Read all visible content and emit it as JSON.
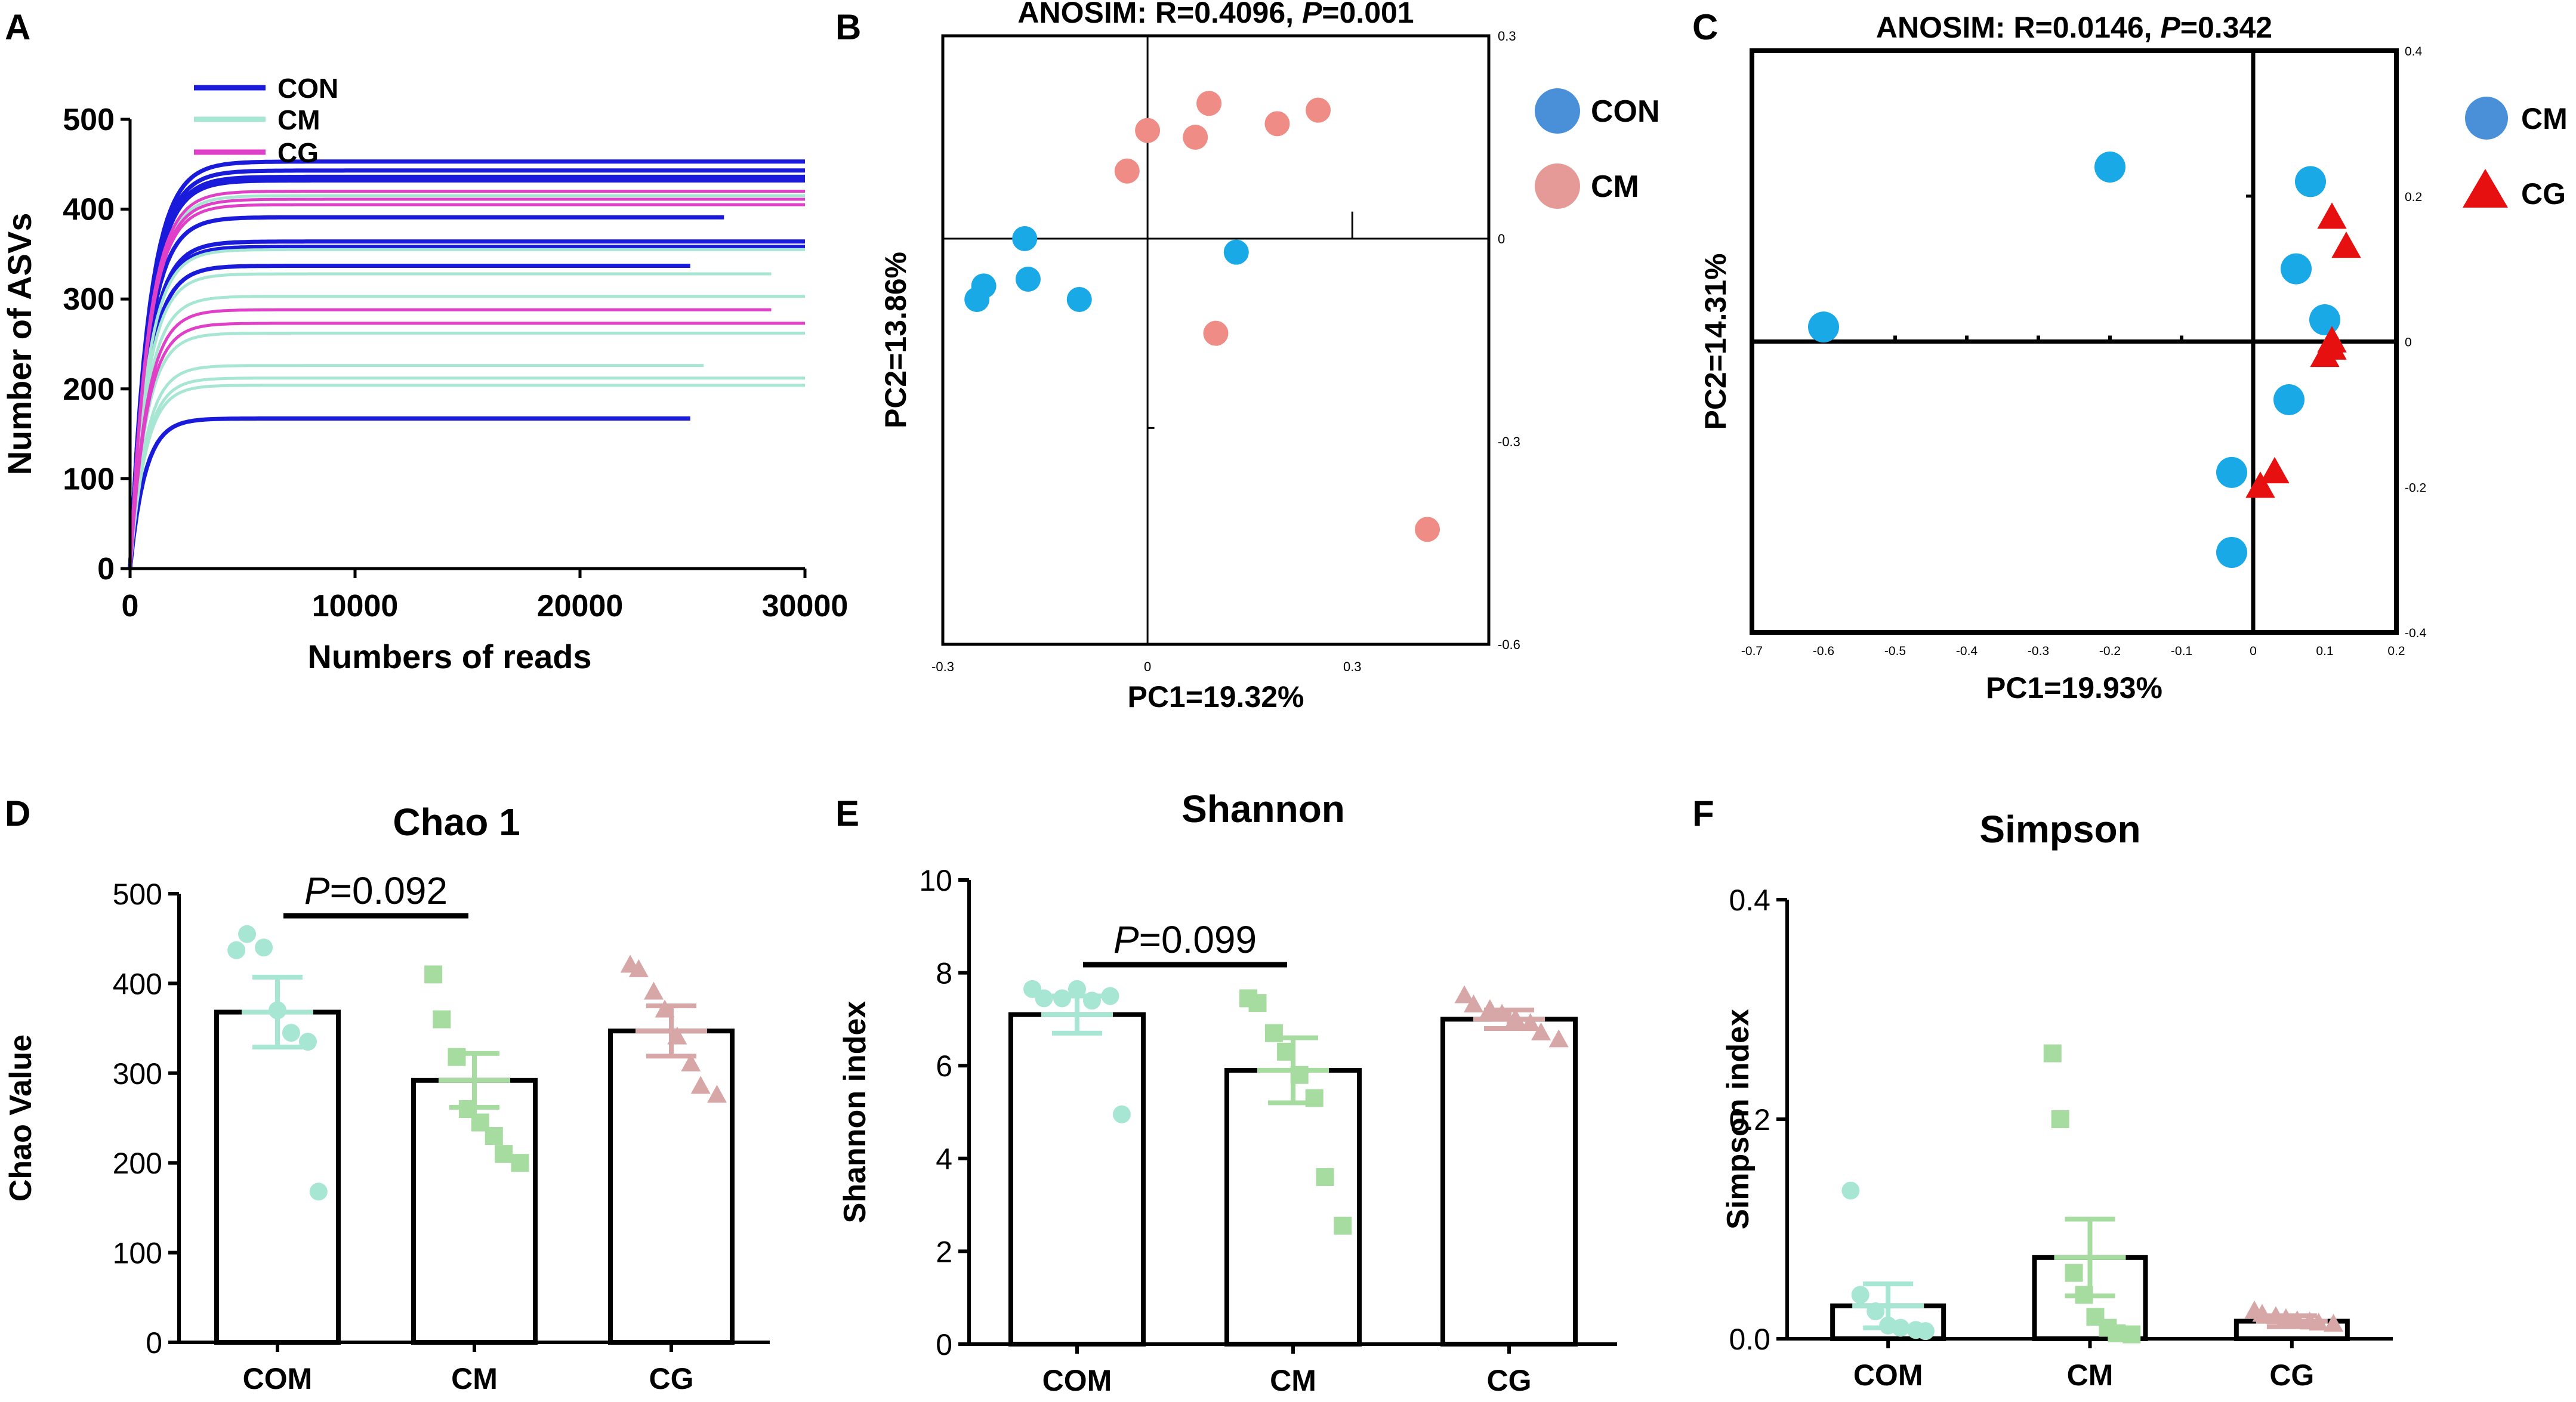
{
  "colors": {
    "con_blue": "#1a1adb",
    "cm_mint": "#a8e6d4",
    "cg_magenta": "#e040c8",
    "pcoa_blue": "#19a9e6",
    "pcoa_pink": "#f08c86",
    "legend_blue": "#4a90d9",
    "legend_pink": "#e69a98",
    "red": "#e61010",
    "point_mint": "#a8e6d4",
    "point_green": "#a7dca0",
    "point_rose": "#d7a7a7"
  },
  "chart_data": [
    {
      "type": "line",
      "panel": "A",
      "xlabel": "Numbers of reads",
      "ylabel": "Number of ASVs",
      "xlim": [
        0,
        30000
      ],
      "ylim": [
        0,
        500
      ],
      "xticks": [
        "0",
        "10000",
        "20000",
        "30000"
      ],
      "yticks": [
        "0",
        "100",
        "200",
        "300",
        "400",
        "500"
      ],
      "legend": [
        "CON",
        "CM",
        "CG"
      ],
      "series": [
        {
          "name": "CON",
          "asymptotes": [
            453,
            443,
            436,
            432,
            391,
            364,
            358,
            337,
            167
          ],
          "read_ends": [
            30000,
            30000,
            30000,
            30000,
            26500,
            30000,
            30000,
            25000,
            25000
          ]
        },
        {
          "name": "CM",
          "asymptotes": [
            415,
            355,
            328,
            303,
            262,
            226,
            212,
            204
          ],
          "read_ends": [
            30000,
            30000,
            28500,
            30000,
            30000,
            25500,
            30000,
            30000
          ]
        },
        {
          "name": "CG",
          "asymptotes": [
            420,
            411,
            405,
            288,
            273
          ],
          "read_ends": [
            30000,
            30000,
            30000,
            28500,
            30000
          ]
        }
      ]
    },
    {
      "type": "scatter",
      "panel": "B",
      "title": "ANOSIM: R=0.4096, P=0.001",
      "title_lead": "ANOSIM: R=0.4096, ",
      "title_p": "P",
      "title_tail": "=0.001",
      "xlabel": "PC1=19.32%",
      "ylabel": "PC2=13.86%",
      "xlim": [
        -0.3,
        0.5
      ],
      "ylim": [
        -0.6,
        0.3
      ],
      "xticks": [
        "-0.3",
        "0",
        "0.3"
      ],
      "yticks": [
        "0.3",
        "0",
        "-0.3",
        "-0.6"
      ],
      "legend": [
        "CON",
        "CM"
      ],
      "series": [
        {
          "name": "CON",
          "points": [
            [
              -0.24,
              -0.07
            ],
            [
              -0.25,
              -0.09
            ],
            [
              -0.18,
              0.0
            ],
            [
              -0.175,
              -0.06
            ],
            [
              -0.1,
              -0.09
            ],
            [
              0.13,
              -0.02
            ]
          ]
        },
        {
          "name": "CM",
          "points": [
            [
              -0.03,
              0.1
            ],
            [
              0.0,
              0.16
            ],
            [
              0.07,
              0.15
            ],
            [
              0.09,
              0.2
            ],
            [
              0.19,
              0.17
            ],
            [
              0.25,
              0.19
            ],
            [
              0.1,
              -0.14
            ],
            [
              0.41,
              -0.43
            ]
          ]
        }
      ]
    },
    {
      "type": "scatter",
      "panel": "C",
      "title": "ANOSIM: R=0.0146, P=0.342",
      "title_lead": "ANOSIM: R=0.0146, ",
      "title_p": "P",
      "title_tail": "=0.342",
      "xlabel": "PC1=19.93%",
      "ylabel": "PC2=14.31%",
      "xlim": [
        -0.7,
        0.2
      ],
      "ylim": [
        -0.4,
        0.4
      ],
      "xticks": [
        "-0.7",
        "-0.6",
        "-0.5",
        "-0.4",
        "-0.3",
        "-0.2",
        "-0.1",
        "0",
        "0.1",
        "0.2"
      ],
      "yticks": [
        "0.4",
        "0.2",
        "0",
        "-0.2",
        "-0.4"
      ],
      "legend": [
        "CM",
        "CG"
      ],
      "series": [
        {
          "name": "CM",
          "points": [
            [
              -0.6,
              0.02
            ],
            [
              -0.2,
              0.24
            ],
            [
              0.08,
              0.22
            ],
            [
              0.06,
              0.1
            ],
            [
              0.1,
              0.03
            ],
            [
              0.05,
              -0.08
            ],
            [
              -0.03,
              -0.18
            ],
            [
              -0.03,
              -0.29
            ]
          ]
        },
        {
          "name": "CG",
          "points": [
            [
              0.11,
              0.17
            ],
            [
              0.13,
              0.13
            ],
            [
              0.11,
              0.0
            ],
            [
              0.1,
              -0.02
            ],
            [
              0.11,
              -0.01
            ],
            [
              0.03,
              -0.18
            ],
            [
              0.01,
              -0.2
            ]
          ]
        }
      ]
    },
    {
      "type": "bar",
      "panel": "D",
      "title": "Chao 1",
      "ylabel": "Chao Value",
      "categories": [
        "COM",
        "CM",
        "CG"
      ],
      "means": [
        368,
        292,
        347
      ],
      "sem": [
        39,
        30,
        28
      ],
      "ylim": [
        0,
        500
      ],
      "yticks": [
        "0",
        "100",
        "200",
        "300",
        "400",
        "500"
      ],
      "points": [
        [
          437,
          455,
          440,
          370,
          345,
          335,
          168
        ],
        [
          410,
          360,
          318,
          260,
          245,
          230,
          210,
          200
        ],
        [
          420,
          415,
          390,
          370,
          340,
          310,
          285,
          275
        ]
      ],
      "annotation": {
        "p": "P",
        "value": "=0.092"
      }
    },
    {
      "type": "bar",
      "panel": "E",
      "title": "Shannon",
      "ylabel": "Shannon index",
      "categories": [
        "COM",
        "CM",
        "CG"
      ],
      "means": [
        7.1,
        5.9,
        7.0
      ],
      "sem": [
        0.4,
        0.7,
        0.2
      ],
      "ylim": [
        0,
        10
      ],
      "yticks": [
        "0",
        "2",
        "4",
        "6",
        "8",
        "10"
      ],
      "points": [
        [
          7.65,
          7.45,
          7.45,
          7.65,
          7.4,
          7.5,
          4.95
        ],
        [
          7.45,
          7.35,
          6.7,
          6.3,
          5.8,
          5.3,
          3.6,
          2.55
        ],
        [
          7.5,
          7.3,
          7.2,
          7.1,
          7.0,
          6.9,
          6.7,
          6.55
        ]
      ],
      "annotation": {
        "p": "P",
        "value": "=0.099"
      }
    },
    {
      "type": "bar",
      "panel": "F",
      "title": "Simpson",
      "ylabel": "Simpson index",
      "categories": [
        "COM",
        "CM",
        "CG"
      ],
      "means": [
        0.03,
        0.074,
        0.016
      ],
      "sem": [
        0.02,
        0.035,
        0.005
      ],
      "ylim": [
        0,
        0.4
      ],
      "yticks": [
        "0.0",
        "0.2",
        "0.4"
      ],
      "points": [
        [
          0.135,
          0.04,
          0.025,
          0.012,
          0.01,
          0.008,
          0.007
        ],
        [
          0.26,
          0.2,
          0.06,
          0.04,
          0.02,
          0.01,
          0.005,
          0.004
        ],
        [
          0.025,
          0.022,
          0.02,
          0.018,
          0.016,
          0.015,
          0.014,
          0.013
        ]
      ]
    }
  ],
  "panels": [
    "A",
    "B",
    "C",
    "D",
    "E",
    "F"
  ]
}
